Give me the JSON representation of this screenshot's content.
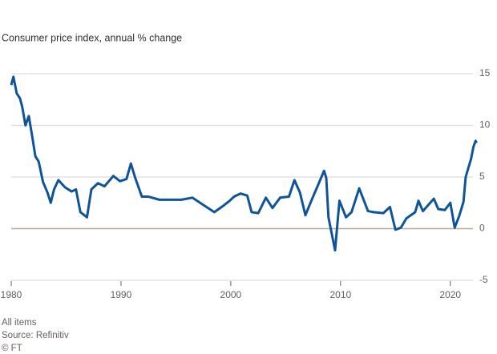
{
  "chart_data": {
    "type": "line",
    "subtitle": "Consumer price index, annual % change",
    "notes": "All items",
    "source": "Source: Refinitiv",
    "credit": "© FT",
    "color": "#0f5499",
    "x": [
      1980.0,
      1980.2,
      1980.5,
      1980.8,
      1981.0,
      1981.3,
      1981.6,
      1981.9,
      1982.2,
      1982.5,
      1982.9,
      1983.3,
      1983.6,
      1983.9,
      1984.3,
      1984.9,
      1985.5,
      1985.9,
      1986.3,
      1986.9,
      1987.3,
      1987.9,
      1988.5,
      1989.3,
      1989.9,
      1990.5,
      1990.9,
      1991.3,
      1991.9,
      1992.5,
      1993.5,
      1994.5,
      1995.5,
      1996.5,
      1997.5,
      1998.5,
      1999.3,
      1999.9,
      2000.3,
      2000.9,
      2001.5,
      2001.9,
      2002.5,
      2003.2,
      2003.8,
      2004.5,
      2005.3,
      2005.8,
      2006.3,
      2006.8,
      2007.3,
      2007.9,
      2008.5,
      2008.7,
      2008.9,
      2009.5,
      2009.9,
      2010.5,
      2011.0,
      2011.7,
      2012.5,
      2013.0,
      2013.9,
      2014.5,
      2015.0,
      2015.5,
      2016.0,
      2016.8,
      2017.1,
      2017.5,
      2018.5,
      2018.9,
      2019.5,
      2020.0,
      2020.4,
      2020.8,
      2021.2,
      2021.4,
      2021.9,
      2022.1,
      2022.3,
      2022.4
    ],
    "values": [
      13.9,
      14.7,
      13.1,
      12.6,
      11.8,
      10.0,
      10.9,
      9.0,
      7.0,
      6.5,
      4.5,
      3.5,
      2.5,
      3.8,
      4.7,
      4.0,
      3.6,
      3.8,
      1.6,
      1.1,
      3.8,
      4.4,
      4.1,
      5.1,
      4.6,
      4.8,
      6.3,
      4.9,
      3.1,
      3.1,
      2.8,
      2.8,
      2.8,
      3.0,
      2.3,
      1.6,
      2.2,
      2.7,
      3.1,
      3.4,
      3.2,
      1.6,
      1.5,
      3.0,
      2.0,
      3.0,
      3.1,
      4.7,
      3.5,
      1.3,
      2.6,
      4.1,
      5.6,
      4.9,
      1.1,
      -2.1,
      2.7,
      1.1,
      1.6,
      3.9,
      1.7,
      1.6,
      1.5,
      2.1,
      -0.1,
      0.1,
      1.0,
      1.6,
      2.7,
      1.7,
      2.9,
      1.9,
      1.8,
      2.5,
      0.1,
      1.2,
      2.6,
      5.0,
      6.8,
      7.9,
      8.5,
      8.3
    ],
    "xlim": [
      1980,
      2022.5
    ],
    "xticks": [
      1980,
      1990,
      2000,
      2010,
      2020
    ],
    "ylim": [
      -5,
      15
    ],
    "yticks": [
      -5,
      0,
      5,
      10,
      15
    ],
    "grid": true
  }
}
